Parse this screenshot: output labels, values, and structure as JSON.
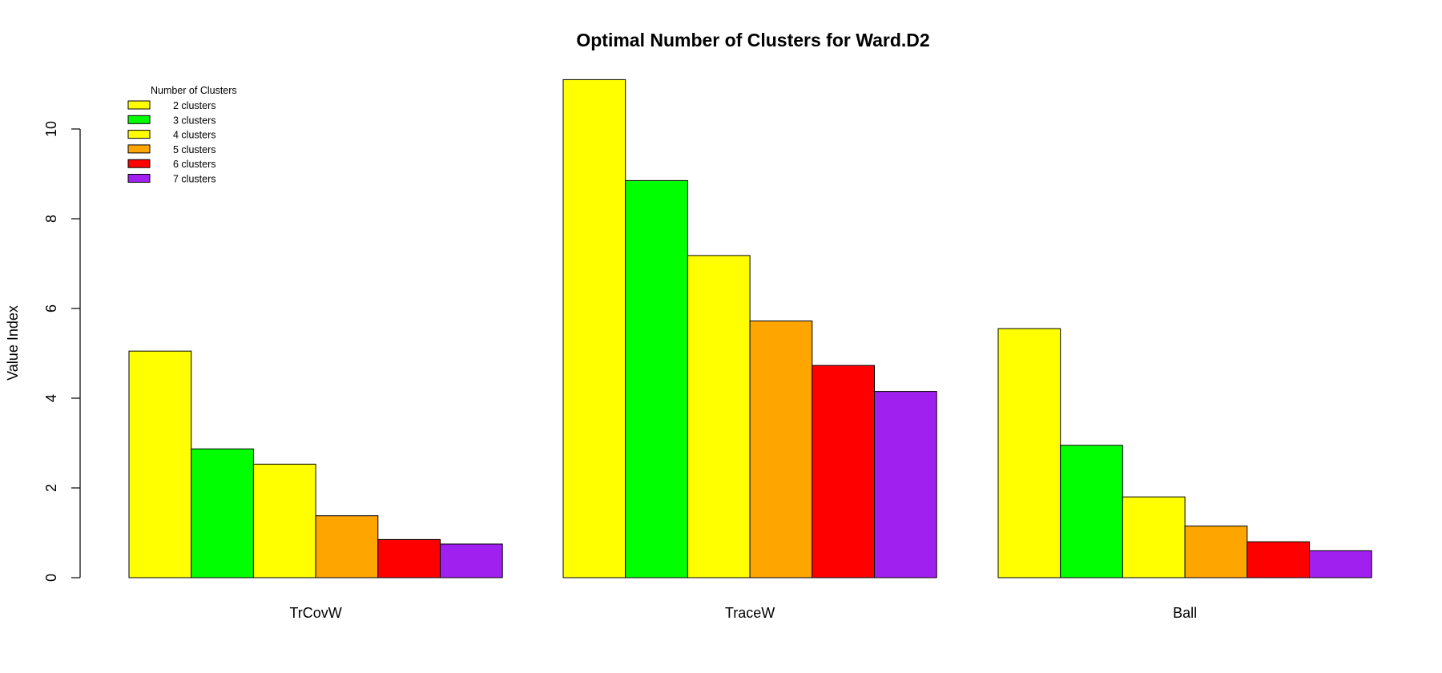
{
  "chart_data": {
    "type": "bar",
    "title": "Optimal Number of Clusters for Ward.D2",
    "xlabel": "",
    "ylabel": "Value Index",
    "ylim": [
      0,
      11.5
    ],
    "yticks": [
      0,
      2,
      4,
      6,
      8,
      10
    ],
    "categories": [
      "TrCovW",
      "TraceW",
      "Ball"
    ],
    "legend": {
      "title": "Number of Clusters",
      "placement": "top-left"
    },
    "grid": false,
    "series": [
      {
        "name": "2 clusters",
        "color": "#FFFF00",
        "values": [
          5.05,
          11.1,
          5.55
        ]
      },
      {
        "name": "3 clusters",
        "color": "#00FF00",
        "values": [
          2.87,
          8.85,
          2.95
        ]
      },
      {
        "name": "4 clusters",
        "color": "#FFFF00",
        "values": [
          2.53,
          7.18,
          1.8
        ]
      },
      {
        "name": "5 clusters",
        "color": "#FFA500",
        "values": [
          1.38,
          5.72,
          1.15
        ]
      },
      {
        "name": "6 clusters",
        "color": "#FF0000",
        "values": [
          0.85,
          4.73,
          0.8
        ]
      },
      {
        "name": "7 clusters",
        "color": "#A020F0",
        "values": [
          0.75,
          4.15,
          0.6
        ]
      }
    ]
  }
}
